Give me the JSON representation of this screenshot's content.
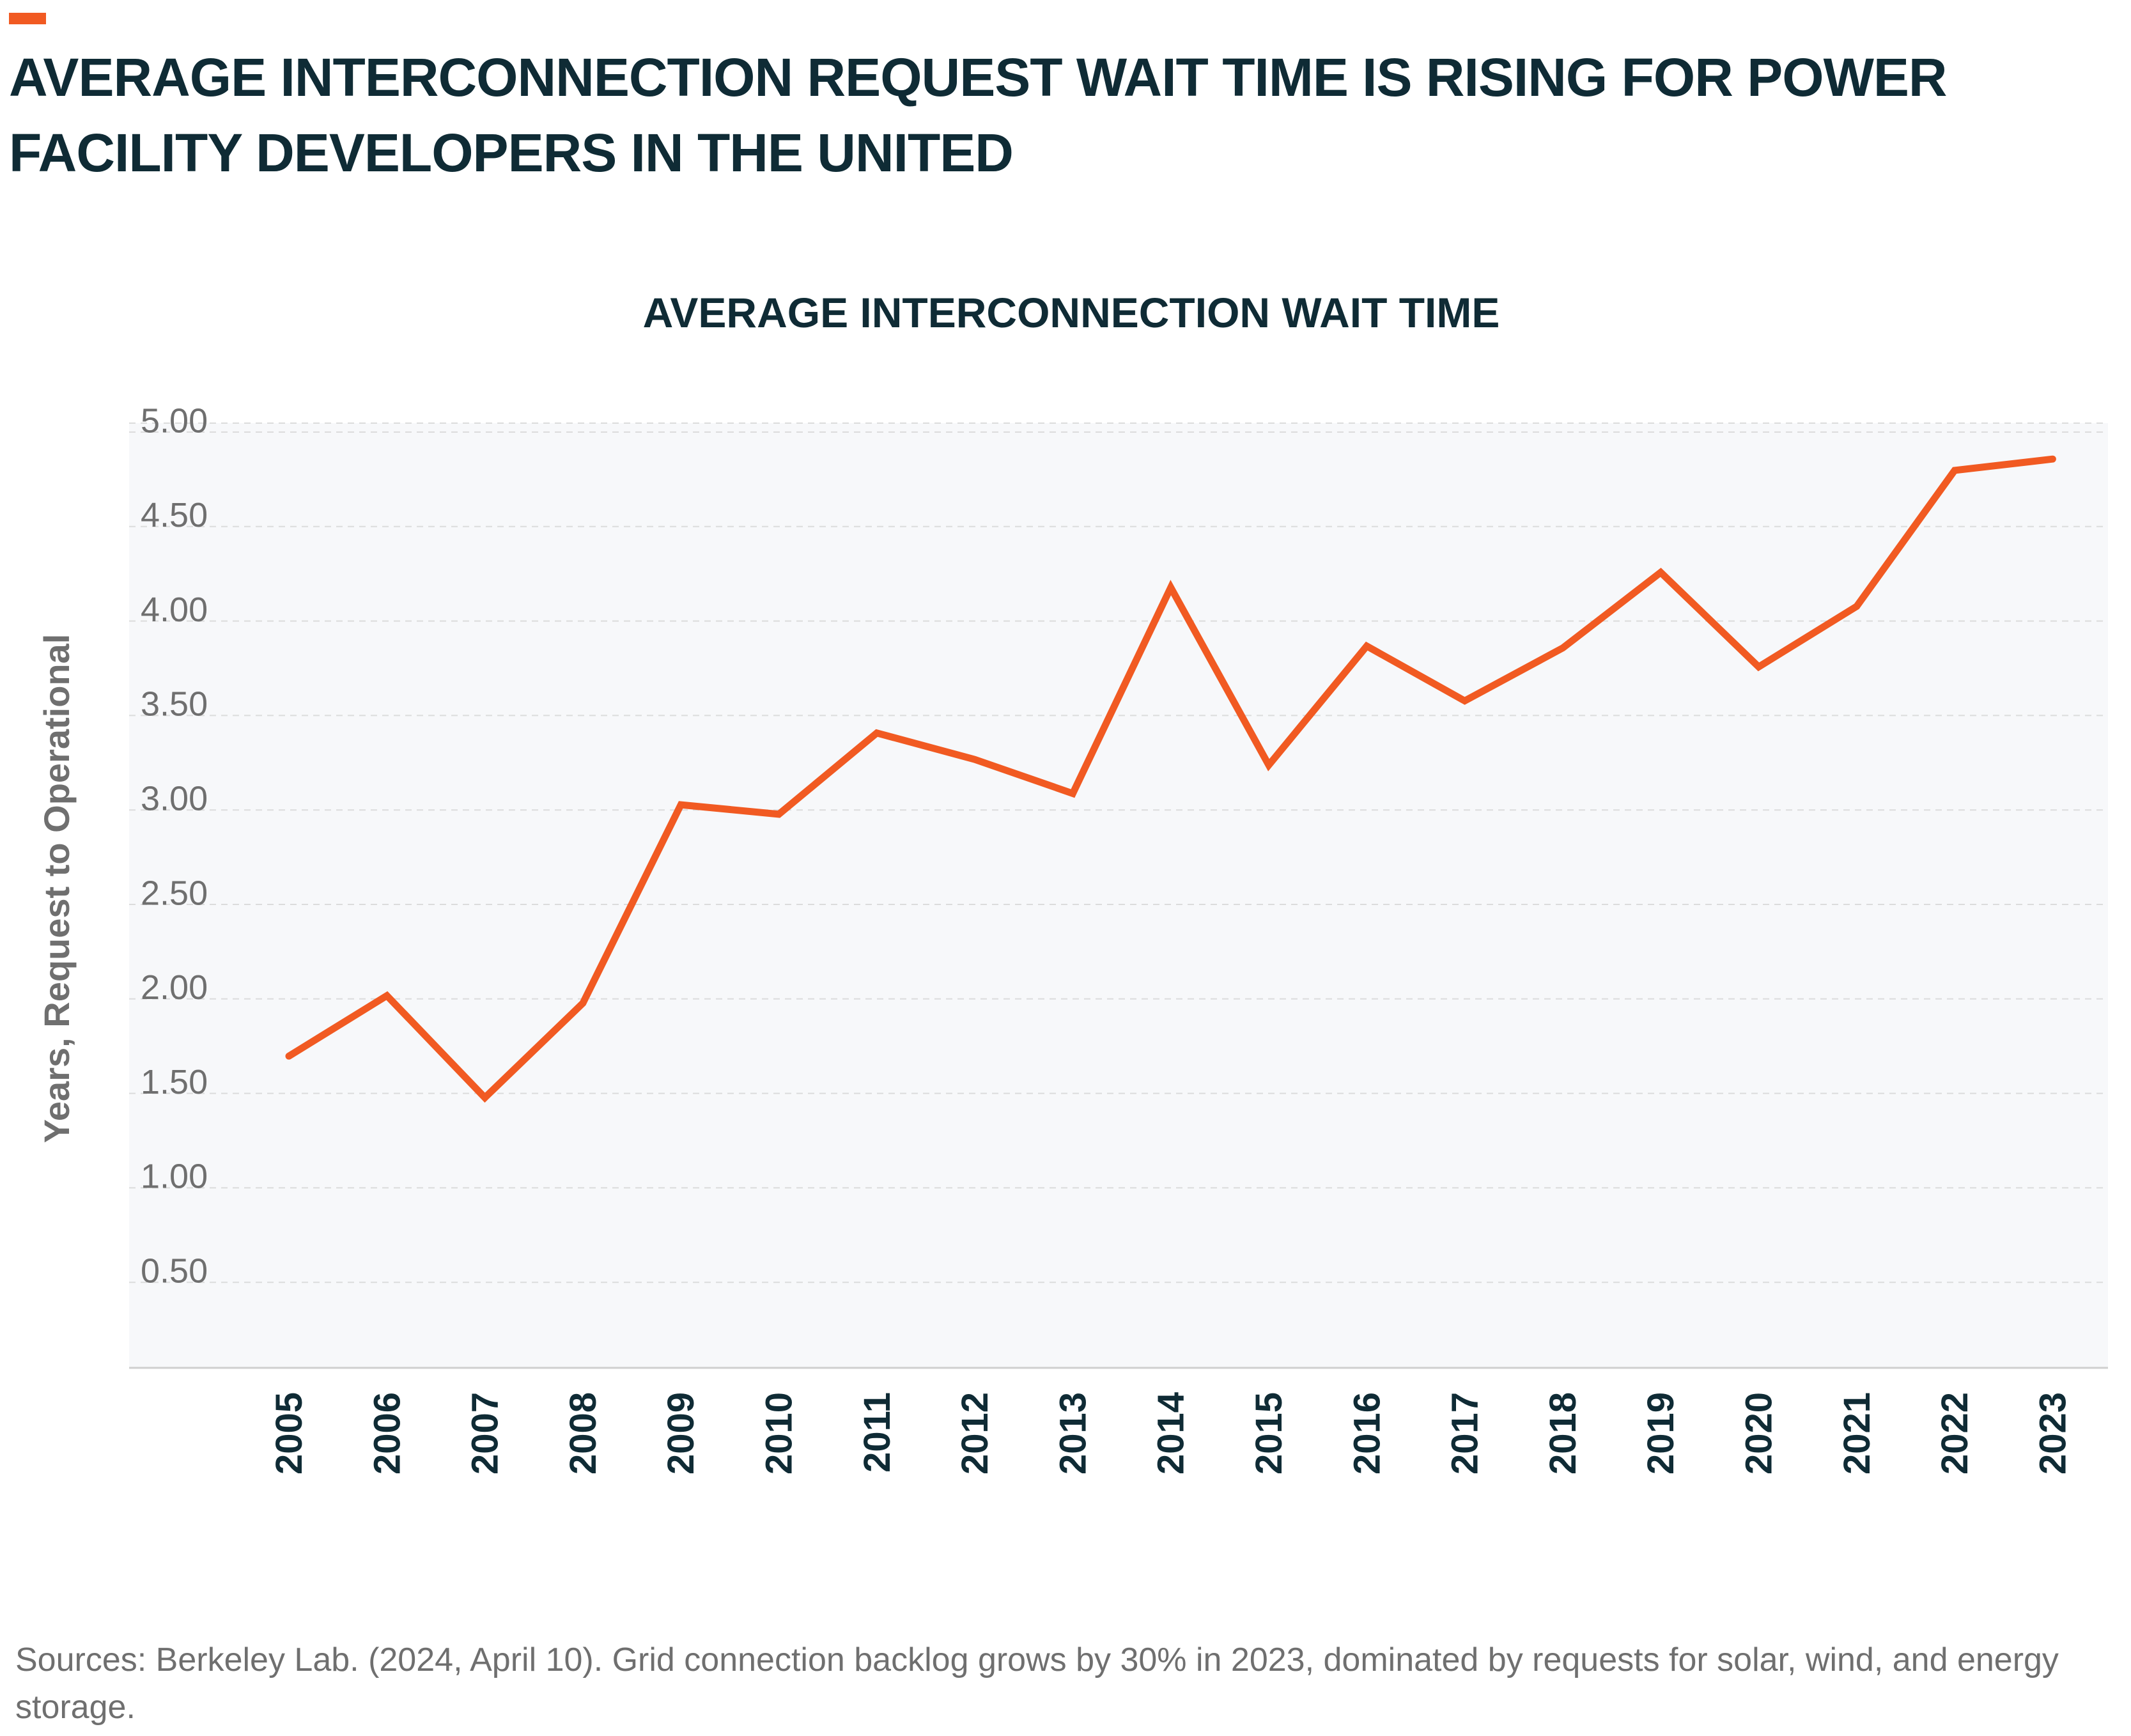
{
  "page": {
    "headline": "AVERAGE INTERCONNECTION REQUEST WAIT TIME IS RISING FOR POWER FACILITY DEVELOPERS IN THE UNITED",
    "source": "Sources: Berkeley Lab. (2024, April 10). Grid connection backlog grows by 30% in 2023, dominated by requests for solar, wind, and energy storage.",
    "accent_color": "#f15a22",
    "text_color": "#0f2b35"
  },
  "chart_data": {
    "type": "line",
    "title": "AVERAGE INTERCONNECTION WAIT TIME",
    "xlabel": "",
    "ylabel": "Years, Request to Operational",
    "categories": [
      "2005",
      "2006",
      "2007",
      "2008",
      "2009",
      "2010",
      "2011",
      "2012",
      "2013",
      "2014",
      "2015",
      "2016",
      "2017",
      "2018",
      "2019",
      "2020",
      "2021",
      "2022",
      "2023"
    ],
    "series": [
      {
        "values": [
          1.65,
          1.97,
          1.43,
          1.93,
          2.98,
          2.93,
          3.36,
          3.22,
          3.04,
          4.13,
          3.19,
          3.82,
          3.53,
          3.81,
          4.21,
          3.71,
          4.03,
          4.75,
          4.81
        ],
        "color": "#f15a22"
      }
    ],
    "yticks": [
      "0.50",
      "1.00",
      "1.50",
      "2.00",
      "2.50",
      "3.00",
      "3.50",
      "4.00",
      "4.50",
      "5.00"
    ],
    "ylim": [
      0,
      5.0
    ],
    "grid": true,
    "plot_background": "#f7f8fa"
  }
}
